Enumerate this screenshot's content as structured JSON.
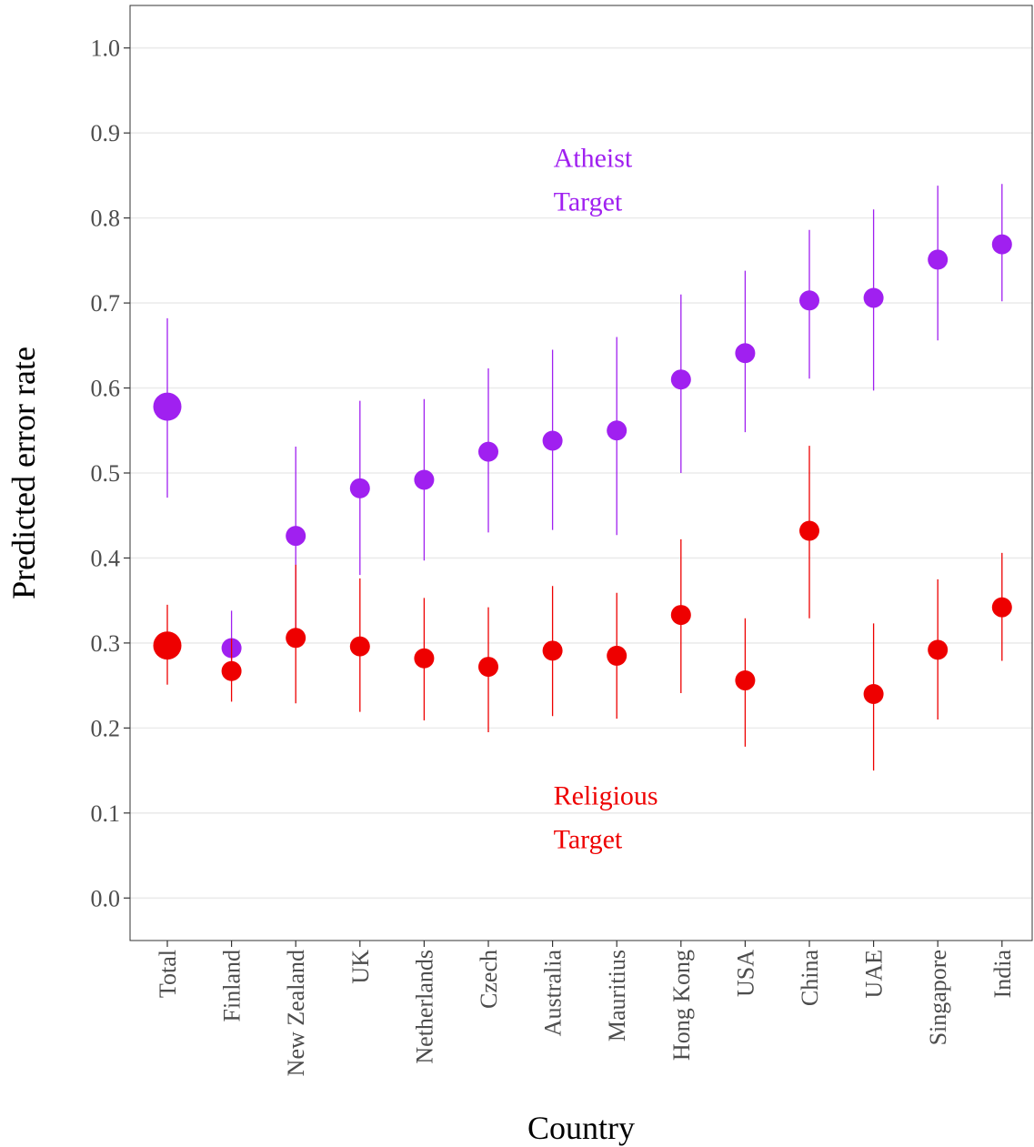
{
  "chart_data": {
    "type": "scatter",
    "xlabel": "Country",
    "ylabel": "Predicted error rate",
    "ylim": [
      -0.05,
      1.05
    ],
    "yticks": [
      "0.0",
      "0.1",
      "0.2",
      "0.3",
      "0.4",
      "0.5",
      "0.6",
      "0.7",
      "0.8",
      "0.9",
      "1.0"
    ],
    "grid": "horizontal",
    "categories": [
      "Total",
      "Finland",
      "New Zealand",
      "UK",
      "Netherlands",
      "Czech",
      "Australia",
      "Mauritius",
      "Hong Kong",
      "USA",
      "China",
      "UAE",
      "Singapore",
      "India"
    ],
    "series": [
      {
        "color": "#a020f0",
        "values": [
          0.578,
          0.294,
          0.426,
          0.482,
          0.492,
          0.525,
          0.538,
          0.55,
          0.61,
          0.641,
          0.703,
          0.706,
          0.751,
          0.769
        ],
        "lower": [
          0.471,
          0.255,
          0.31,
          0.38,
          0.397,
          0.43,
          0.433,
          0.427,
          0.5,
          0.548,
          0.611,
          0.597,
          0.656,
          0.702
        ],
        "upper": [
          0.682,
          0.338,
          0.531,
          0.585,
          0.587,
          0.623,
          0.645,
          0.66,
          0.71,
          0.738,
          0.786,
          0.81,
          0.838,
          0.84
        ]
      },
      {
        "color": "#ee0000",
        "values": [
          0.297,
          0.267,
          0.306,
          0.296,
          0.282,
          0.272,
          0.291,
          0.285,
          0.333,
          0.256,
          0.432,
          0.24,
          0.292,
          0.342
        ],
        "lower": [
          0.251,
          0.231,
          0.229,
          0.219,
          0.209,
          0.195,
          0.214,
          0.211,
          0.241,
          0.178,
          0.329,
          0.15,
          0.21,
          0.279
        ],
        "upper": [
          0.345,
          0.305,
          0.392,
          0.376,
          0.353,
          0.342,
          0.367,
          0.359,
          0.422,
          0.329,
          0.532,
          0.323,
          0.375,
          0.406
        ]
      }
    ],
    "annotations": [
      {
        "lines": [
          "Atheist",
          "Target"
        ],
        "color": "#a020f0",
        "x_index": 6,
        "y": 0.86
      },
      {
        "lines": [
          "Religious",
          "Target"
        ],
        "color": "#ee0000",
        "x_index": 6,
        "y": 0.11
      }
    ]
  }
}
